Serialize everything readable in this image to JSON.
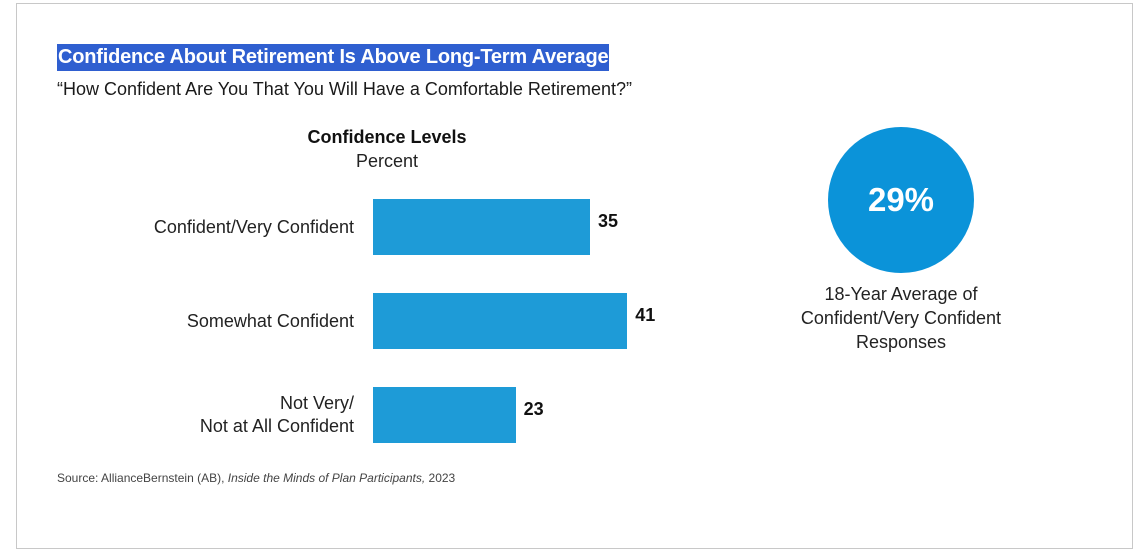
{
  "title": "Confidence About Retirement Is Above Long-Term Average",
  "subtitle": "“How Confident Are You That You Will Have a Comfortable Retirement?”",
  "chart_data": {
    "type": "bar",
    "orientation": "horizontal",
    "title": "Confidence Levels",
    "subtitle": "Percent",
    "categories": [
      "Confident/Very Confident",
      "Somewhat Confident",
      "Not Very/\nNot at All Confident"
    ],
    "values": [
      35,
      41,
      23
    ],
    "bar_color": "#1e9bd7",
    "data_labels": true
  },
  "callout": {
    "value": "29%",
    "caption": "18-Year Average of\nConfident/Very Confident\nResponses",
    "color": "#0b93d9"
  },
  "source": {
    "prefix": "Source: AllianceBernstein (AB), ",
    "publication": "Inside the Minds of Plan Participants,",
    "year": " 2023"
  }
}
